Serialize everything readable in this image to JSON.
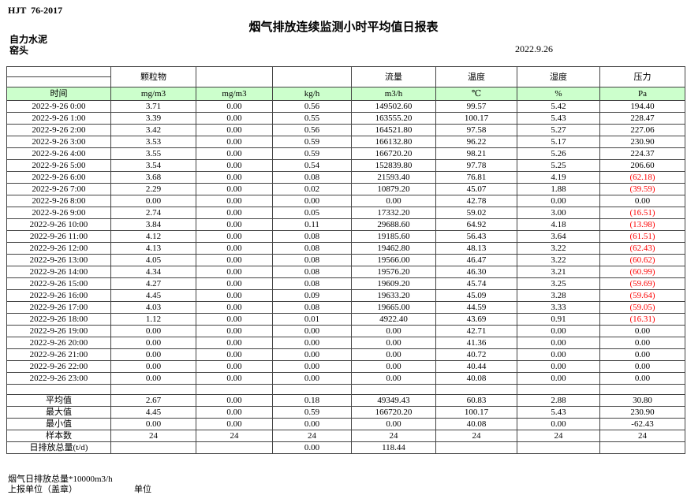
{
  "document": {
    "standard": "HJT  76-2017",
    "title": "烟气排放连续监测小时平均值日报表",
    "company": "自力水泥",
    "station": "窑头",
    "date": "2022.9.26"
  },
  "colors": {
    "header_fill": "#ccffcc",
    "negative_value": "#fe0000"
  },
  "table": {
    "group_headers": [
      "",
      "颗粒物",
      "",
      "",
      "流量",
      "温度",
      "湿度",
      "压力"
    ],
    "unit_headers": [
      "时间",
      "mg/m3",
      "mg/m3",
      "kg/h",
      "m3/h",
      "℃",
      "%",
      "Pa"
    ],
    "rows": [
      {
        "time": "2022-9-26 0:00",
        "values": [
          "3.71",
          "0.00",
          "0.56",
          "149502.60",
          "99.57",
          "5.42",
          "194.40"
        ]
      },
      {
        "time": "2022-9-26 1:00",
        "values": [
          "3.39",
          "0.00",
          "0.55",
          "163555.20",
          "100.17",
          "5.43",
          "228.47"
        ]
      },
      {
        "time": "2022-9-26 2:00",
        "values": [
          "3.42",
          "0.00",
          "0.56",
          "164521.80",
          "97.58",
          "5.27",
          "227.06"
        ]
      },
      {
        "time": "2022-9-26 3:00",
        "values": [
          "3.53",
          "0.00",
          "0.59",
          "166132.80",
          "96.22",
          "5.17",
          "230.90"
        ]
      },
      {
        "time": "2022-9-26 4:00",
        "values": [
          "3.55",
          "0.00",
          "0.59",
          "166720.20",
          "98.21",
          "5.26",
          "224.37"
        ]
      },
      {
        "time": "2022-9-26 5:00",
        "values": [
          "3.54",
          "0.00",
          "0.54",
          "152839.80",
          "97.78",
          "5.25",
          "206.60"
        ]
      },
      {
        "time": "2022-9-26 6:00",
        "values": [
          "3.68",
          "0.00",
          "0.08",
          "21593.40",
          "76.81",
          "4.19",
          "(62.18)"
        ]
      },
      {
        "time": "2022-9-26 7:00",
        "values": [
          "2.29",
          "0.00",
          "0.02",
          "10879.20",
          "45.07",
          "1.88",
          "(39.59)"
        ]
      },
      {
        "time": "2022-9-26 8:00",
        "values": [
          "0.00",
          "0.00",
          "0.00",
          "0.00",
          "42.78",
          "0.00",
          "0.00"
        ]
      },
      {
        "time": "2022-9-26 9:00",
        "values": [
          "2.74",
          "0.00",
          "0.05",
          "17332.20",
          "59.02",
          "3.00",
          "(16.51)"
        ]
      },
      {
        "time": "2022-9-26 10:00",
        "values": [
          "3.84",
          "0.00",
          "0.11",
          "29688.60",
          "64.92",
          "4.18",
          "(13.98)"
        ]
      },
      {
        "time": "2022-9-26 11:00",
        "values": [
          "4.12",
          "0.00",
          "0.08",
          "19185.60",
          "56.43",
          "3.64",
          "(61.51)"
        ]
      },
      {
        "time": "2022-9-26 12:00",
        "values": [
          "4.13",
          "0.00",
          "0.08",
          "19462.80",
          "48.13",
          "3.22",
          "(62.43)"
        ]
      },
      {
        "time": "2022-9-26 13:00",
        "values": [
          "4.05",
          "0.00",
          "0.08",
          "19566.00",
          "46.47",
          "3.22",
          "(60.62)"
        ]
      },
      {
        "time": "2022-9-26 14:00",
        "values": [
          "4.34",
          "0.00",
          "0.08",
          "19576.20",
          "46.30",
          "3.21",
          "(60.99)"
        ]
      },
      {
        "time": "2022-9-26 15:00",
        "values": [
          "4.27",
          "0.00",
          "0.08",
          "19609.20",
          "45.74",
          "3.25",
          "(59.69)"
        ]
      },
      {
        "time": "2022-9-26 16:00",
        "values": [
          "4.45",
          "0.00",
          "0.09",
          "19633.20",
          "45.09",
          "3.28",
          "(59.64)"
        ]
      },
      {
        "time": "2022-9-26 17:00",
        "values": [
          "4.03",
          "0.00",
          "0.08",
          "19665.00",
          "44.59",
          "3.33",
          "(59.05)"
        ]
      },
      {
        "time": "2022-9-26 18:00",
        "values": [
          "1.12",
          "0.00",
          "0.01",
          "4922.40",
          "43.69",
          "0.91",
          "(16.31)"
        ]
      },
      {
        "time": "2022-9-26 19:00",
        "values": [
          "0.00",
          "0.00",
          "0.00",
          "0.00",
          "42.71",
          "0.00",
          "0.00"
        ]
      },
      {
        "time": "2022-9-26 20:00",
        "values": [
          "0.00",
          "0.00",
          "0.00",
          "0.00",
          "41.36",
          "0.00",
          "0.00"
        ]
      },
      {
        "time": "2022-9-26 21:00",
        "values": [
          "0.00",
          "0.00",
          "0.00",
          "0.00",
          "40.72",
          "0.00",
          "0.00"
        ]
      },
      {
        "time": "2022-9-26 22:00",
        "values": [
          "0.00",
          "0.00",
          "0.00",
          "0.00",
          "40.44",
          "0.00",
          "0.00"
        ]
      },
      {
        "time": "2022-9-26 23:00",
        "values": [
          "0.00",
          "0.00",
          "0.00",
          "0.00",
          "40.08",
          "0.00",
          "0.00"
        ]
      }
    ],
    "summary_rows": [
      {
        "label": "平均值",
        "values": [
          "2.67",
          "0.00",
          "0.18",
          "49349.43",
          "60.83",
          "2.88",
          "30.80"
        ]
      },
      {
        "label": "最大值",
        "values": [
          "4.45",
          "0.00",
          "0.59",
          "166720.20",
          "100.17",
          "5.43",
          "230.90"
        ]
      },
      {
        "label": "最小值",
        "values": [
          "0.00",
          "0.00",
          "0.00",
          "0.00",
          "40.08",
          "0.00",
          "-62.43"
        ]
      },
      {
        "label": "样本数",
        "values": [
          "24",
          "24",
          "24",
          "24",
          "24",
          "24",
          "24"
        ]
      },
      {
        "label": "日排放总量(t/d)",
        "values": [
          "",
          "",
          "0.00",
          "118.44",
          "",
          "",
          ""
        ]
      }
    ]
  },
  "footer": {
    "note": "烟气日排放总量*10000m3/h",
    "reporting_unit": "上报单位（盖章）",
    "unit": "单位"
  }
}
